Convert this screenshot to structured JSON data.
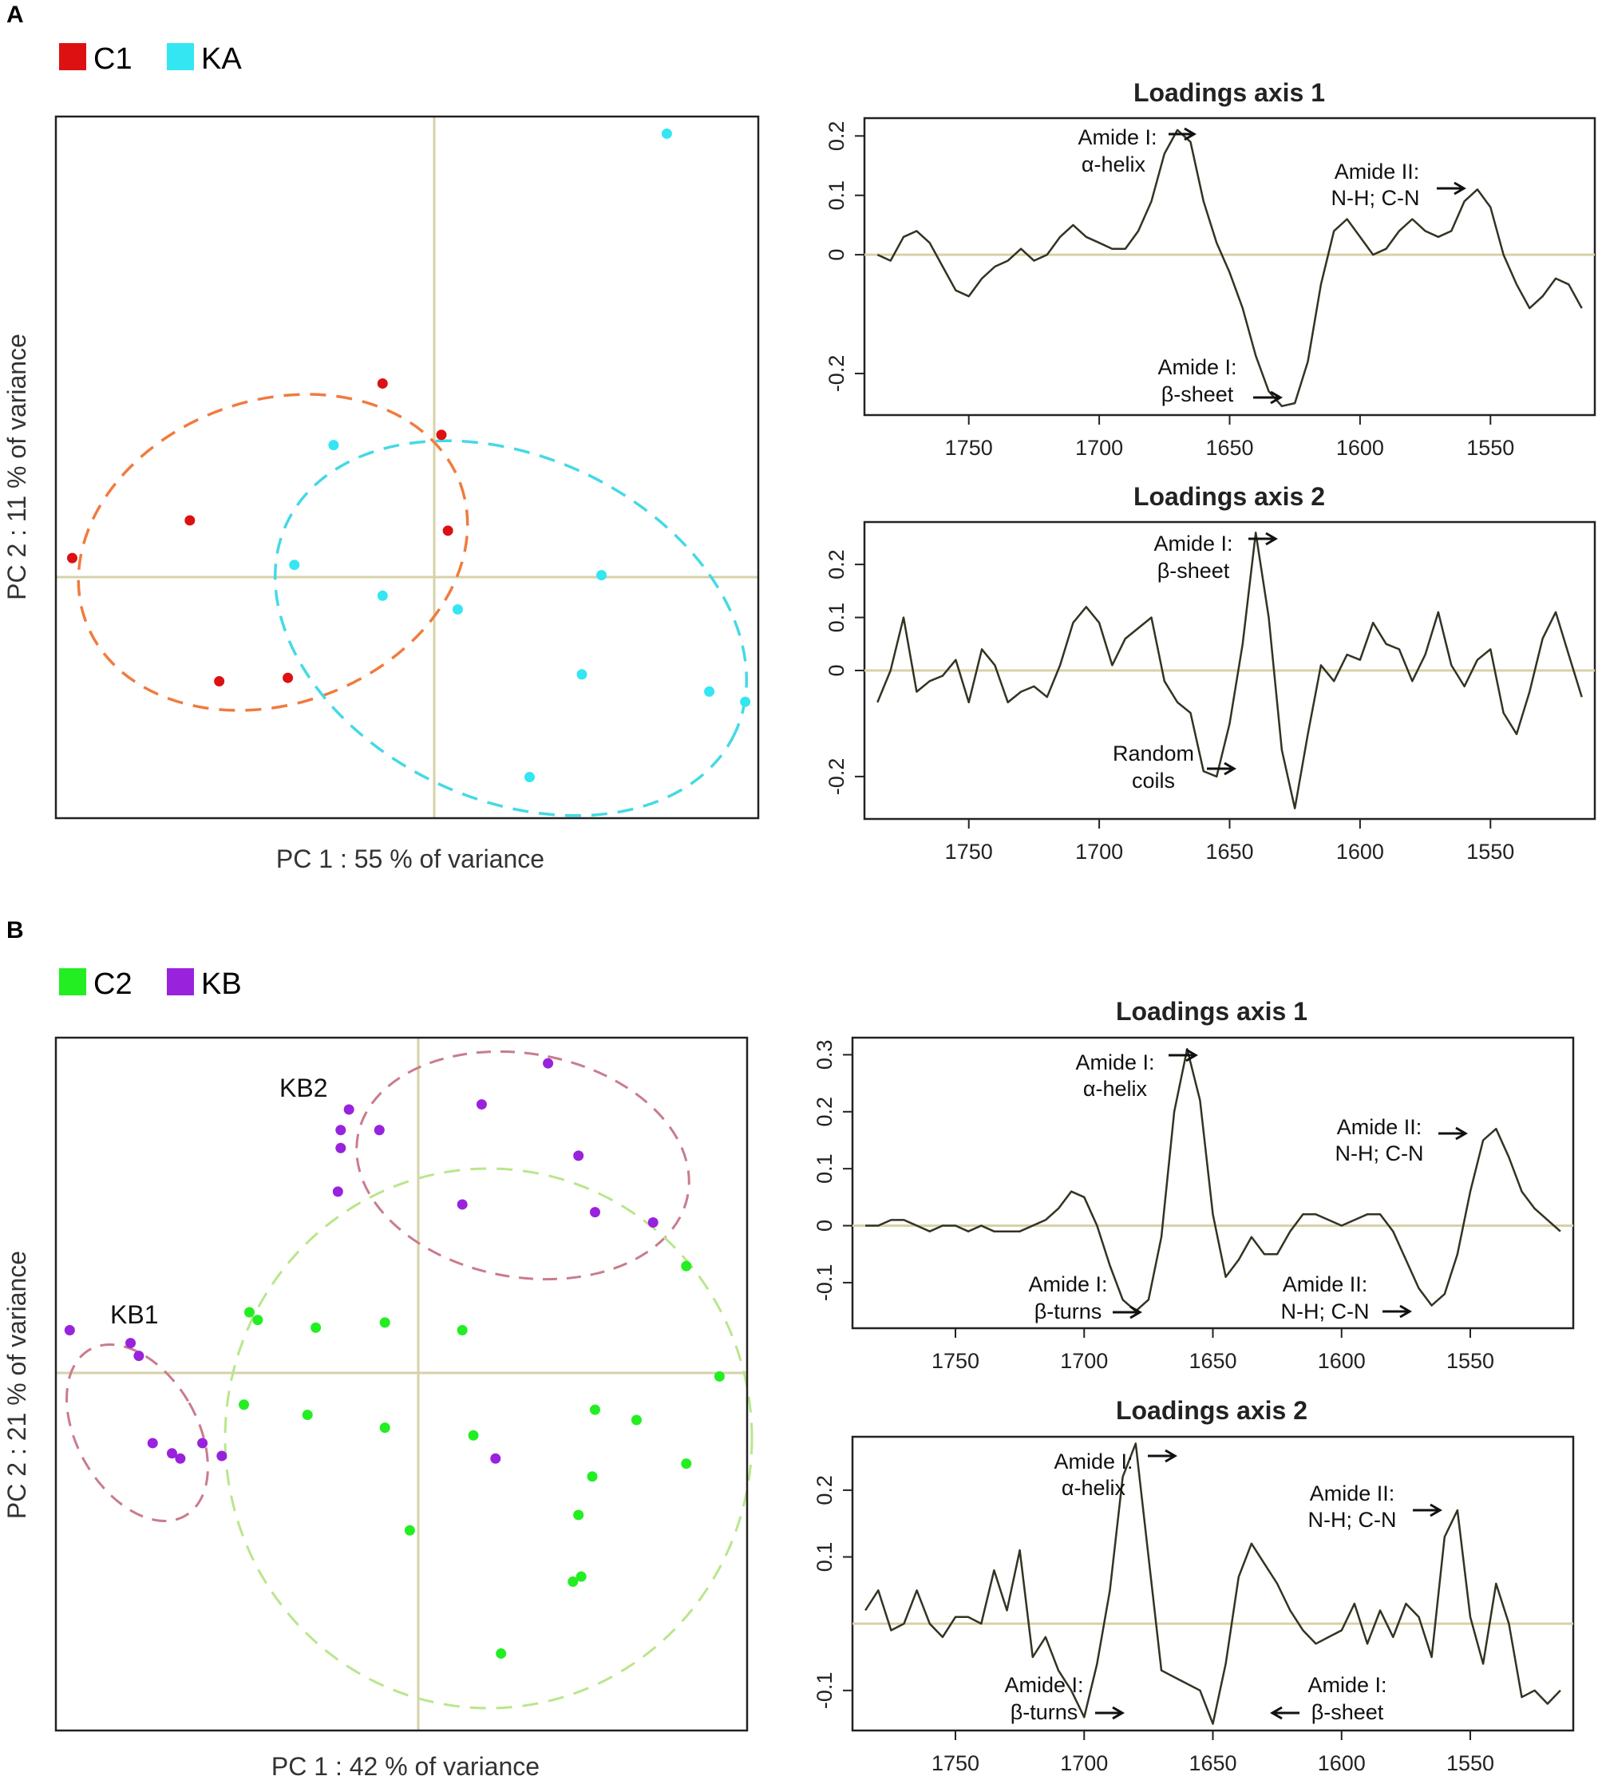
{
  "panels": [
    {
      "letter": "A",
      "legend": [
        {
          "label": "C1",
          "color": "#dd1111"
        },
        {
          "label": "KA",
          "color": "#33e6f2"
        }
      ],
      "score_plot": {
        "xlabel": "PC 1 : 55 % of variance",
        "ylabel": "PC 2 : 11 % of variance"
      },
      "loadings_titles": [
        "Loadings axis 1",
        "Loadings axis 2"
      ]
    },
    {
      "letter": "B",
      "legend": [
        {
          "label": "C2",
          "color": "#22ee22"
        },
        {
          "label": "KB",
          "color": "#9922dd"
        }
      ],
      "score_plot": {
        "xlabel": "PC 1 : 42 % of variance",
        "ylabel": "PC 2 : 21 % of variance",
        "labels": [
          "KB1",
          "KB2"
        ]
      },
      "loadings_titles": [
        "Loadings axis 1",
        "Loadings axis 2"
      ]
    }
  ],
  "colors": {
    "axis": "#222222",
    "zero_line": "#d6d2a8",
    "curve": "#333322",
    "ellipse_C1": "#f07b3f",
    "ellipse_KA": "#44d9e6",
    "ellipse_KB": "#c97c8c",
    "ellipse_C2": "#b9e68c"
  },
  "chart_data": [
    {
      "type": "scatter",
      "title": "",
      "xlabel": "PC 1 : 55 % of variance",
      "ylabel": "PC 2 : 11 % of variance",
      "xlim": [
        -1.15,
        1.0
      ],
      "ylim": [
        -0.75,
        1.3
      ],
      "series": [
        {
          "name": "C1",
          "color": "#dd1111",
          "points": [
            [
              -1.1,
              0.01
            ],
            [
              -0.74,
              0.12
            ],
            [
              -0.15,
              0.52
            ],
            [
              0.03,
              0.37
            ],
            [
              0.05,
              0.09
            ],
            [
              -0.65,
              -0.35
            ],
            [
              -0.44,
              -0.34
            ]
          ]
        },
        {
          "name": "KA",
          "color": "#33e6f2",
          "points": [
            [
              0.72,
              1.25
            ],
            [
              -0.3,
              0.34
            ],
            [
              -0.42,
              -0.01
            ],
            [
              -0.15,
              -0.1
            ],
            [
              0.08,
              -0.14
            ],
            [
              0.52,
              -0.04
            ],
            [
              0.46,
              -0.33
            ],
            [
              0.85,
              -0.38
            ],
            [
              0.96,
              -0.41
            ],
            [
              0.3,
              -0.63
            ]
          ]
        }
      ]
    },
    {
      "type": "line",
      "title": "Loadings axis 1",
      "xlim": [
        1790,
        1510
      ],
      "ylim": [
        -0.27,
        0.23
      ],
      "xticks": [
        1750,
        1700,
        1650,
        1600,
        1550
      ],
      "yticks": [
        0.2,
        0.1,
        0,
        -0.2
      ],
      "ytick_labels": [
        "0.2",
        "0.1",
        "0",
        "-0.2"
      ],
      "x": [
        1785,
        1780,
        1775,
        1770,
        1765,
        1760,
        1755,
        1750,
        1745,
        1740,
        1735,
        1730,
        1725,
        1720,
        1715,
        1710,
        1705,
        1700,
        1695,
        1690,
        1685,
        1680,
        1675,
        1670,
        1665,
        1660,
        1655,
        1650,
        1645,
        1640,
        1635,
        1630,
        1625,
        1620,
        1615,
        1610,
        1605,
        1600,
        1595,
        1590,
        1585,
        1580,
        1575,
        1570,
        1565,
        1560,
        1555,
        1550,
        1545,
        1540,
        1535,
        1530,
        1525,
        1520,
        1515
      ],
      "y": [
        0,
        -0.01,
        0.03,
        0.04,
        0.02,
        -0.02,
        -0.06,
        -0.07,
        -0.04,
        -0.02,
        -0.01,
        0.01,
        -0.01,
        0,
        0.03,
        0.05,
        0.03,
        0.02,
        0.01,
        0.01,
        0.04,
        0.09,
        0.17,
        0.21,
        0.19,
        0.09,
        0.02,
        -0.03,
        -0.09,
        -0.17,
        -0.23,
        -0.255,
        -0.25,
        -0.18,
        -0.05,
        0.04,
        0.06,
        0.03,
        0,
        0.01,
        0.04,
        0.06,
        0.04,
        0.03,
        0.04,
        0.09,
        0.11,
        0.08,
        0,
        -0.05,
        -0.09,
        -0.07,
        -0.04,
        -0.05,
        -0.09
      ],
      "annotations": [
        "Amide I:",
        "α-helix",
        "Amide II:",
        "N-H; C-N",
        "Amide I:",
        "β-sheet"
      ]
    },
    {
      "type": "line",
      "title": "Loadings axis 2",
      "xlim": [
        1790,
        1510
      ],
      "ylim": [
        -0.28,
        0.28
      ],
      "xticks": [
        1750,
        1700,
        1650,
        1600,
        1550
      ],
      "yticks": [
        0.2,
        0.1,
        0,
        -0.2
      ],
      "ytick_labels": [
        "0.2",
        "0.1",
        "0",
        "-0.2"
      ],
      "x": [
        1785,
        1780,
        1775,
        1770,
        1765,
        1760,
        1755,
        1750,
        1745,
        1740,
        1735,
        1730,
        1725,
        1720,
        1715,
        1710,
        1705,
        1700,
        1695,
        1690,
        1685,
        1680,
        1675,
        1670,
        1665,
        1660,
        1655,
        1650,
        1645,
        1640,
        1635,
        1630,
        1625,
        1620,
        1615,
        1610,
        1605,
        1600,
        1595,
        1590,
        1585,
        1580,
        1575,
        1570,
        1565,
        1560,
        1555,
        1550,
        1545,
        1540,
        1535,
        1530,
        1525,
        1520,
        1515
      ],
      "y": [
        -0.06,
        0,
        0.1,
        -0.04,
        -0.02,
        -0.01,
        0.02,
        -0.06,
        0.04,
        0.01,
        -0.06,
        -0.04,
        -0.03,
        -0.05,
        0.01,
        0.09,
        0.12,
        0.09,
        0.01,
        0.06,
        0.08,
        0.1,
        -0.02,
        -0.06,
        -0.08,
        -0.19,
        -0.2,
        -0.1,
        0.05,
        0.26,
        0.1,
        -0.15,
        -0.26,
        -0.12,
        0.01,
        -0.02,
        0.03,
        0.02,
        0.09,
        0.05,
        0.04,
        -0.02,
        0.03,
        0.11,
        0.01,
        -0.03,
        0.02,
        0.04,
        -0.08,
        -0.12,
        -0.04,
        0.06,
        0.11,
        0.03,
        -0.05
      ],
      "annotations": [
        "Amide I:",
        "β-sheet",
        "Random",
        "coils"
      ]
    },
    {
      "type": "scatter",
      "title": "",
      "xlabel": "PC 1 : 42 % of variance",
      "ylabel": "PC 2 : 21 % of variance",
      "xlim": [
        -1.3,
        1.2
      ],
      "ylim": [
        -1.5,
        1.2
      ],
      "series": [
        {
          "name": "KB",
          "color": "#9922dd",
          "points": [
            [
              -1.25,
              0.06
            ],
            [
              -1.03,
              0.01
            ],
            [
              -1.0,
              -0.04
            ],
            [
              -0.95,
              -0.38
            ],
            [
              -0.88,
              -0.42
            ],
            [
              -0.85,
              -0.44
            ],
            [
              -0.77,
              -0.38
            ],
            [
              -0.7,
              -0.43
            ],
            [
              -0.27,
              0.84
            ],
            [
              -0.24,
              0.92
            ],
            [
              -0.27,
              0.77
            ],
            [
              -0.28,
              0.6
            ],
            [
              -0.13,
              0.84
            ],
            [
              0.17,
              0.55
            ],
            [
              0.24,
              0.94
            ],
            [
              0.48,
              1.1
            ],
            [
              0.59,
              0.74
            ],
            [
              0.65,
              0.52
            ],
            [
              0.86,
              0.48
            ],
            [
              0.29,
              -0.44
            ]
          ]
        },
        {
          "name": "C2",
          "color": "#22ee22",
          "points": [
            [
              -0.6,
              0.13
            ],
            [
              -0.57,
              0.1
            ],
            [
              -0.36,
              0.07
            ],
            [
              -0.11,
              0.09
            ],
            [
              0.17,
              0.06
            ],
            [
              0.98,
              0.31
            ],
            [
              1.1,
              -0.12
            ],
            [
              -0.62,
              -0.23
            ],
            [
              -0.39,
              -0.27
            ],
            [
              -0.11,
              -0.32
            ],
            [
              0.21,
              -0.35
            ],
            [
              0.65,
              -0.25
            ],
            [
              0.8,
              -0.29
            ],
            [
              0.98,
              -0.46
            ],
            [
              0.64,
              -0.51
            ],
            [
              0.59,
              -0.66
            ],
            [
              -0.02,
              -0.72
            ],
            [
              0.57,
              -0.92
            ],
            [
              0.6,
              -0.9
            ],
            [
              0.31,
              -1.2
            ]
          ]
        }
      ],
      "annotations": [
        "KB1",
        "KB2"
      ]
    },
    {
      "type": "line",
      "title": "Loadings axis 1",
      "xlim": [
        1790,
        1510
      ],
      "ylim": [
        -0.18,
        0.33
      ],
      "xticks": [
        1750,
        1700,
        1650,
        1600,
        1550
      ],
      "yticks": [
        0.3,
        0.2,
        0.1,
        0,
        -0.1
      ],
      "ytick_labels": [
        "0.3",
        "0.2",
        "0.1",
        "0",
        "-0.1"
      ],
      "x": [
        1785,
        1780,
        1775,
        1770,
        1765,
        1760,
        1755,
        1750,
        1745,
        1740,
        1735,
        1730,
        1725,
        1720,
        1715,
        1710,
        1705,
        1700,
        1695,
        1690,
        1685,
        1680,
        1675,
        1670,
        1665,
        1660,
        1655,
        1650,
        1645,
        1640,
        1635,
        1630,
        1625,
        1620,
        1615,
        1610,
        1605,
        1600,
        1595,
        1590,
        1585,
        1580,
        1575,
        1570,
        1565,
        1560,
        1555,
        1550,
        1545,
        1540,
        1535,
        1530,
        1525,
        1520,
        1515
      ],
      "y": [
        0,
        0,
        0.01,
        0.01,
        0,
        -0.01,
        0,
        0,
        -0.01,
        0,
        -0.01,
        -0.01,
        -0.01,
        0,
        0.01,
        0.03,
        0.06,
        0.05,
        0,
        -0.07,
        -0.13,
        -0.15,
        -0.13,
        -0.02,
        0.2,
        0.31,
        0.22,
        0.02,
        -0.09,
        -0.06,
        -0.02,
        -0.05,
        -0.05,
        -0.01,
        0.02,
        0.02,
        0.01,
        0,
        0.01,
        0.02,
        0.02,
        -0.01,
        -0.06,
        -0.11,
        -0.14,
        -0.12,
        -0.05,
        0.06,
        0.15,
        0.17,
        0.12,
        0.06,
        0.03,
        0.01,
        -0.01
      ],
      "annotations": [
        "Amide I:",
        "α-helix",
        "Amide II:",
        "N-H; C-N",
        "Amide I:",
        "β-turns",
        "Amide II:",
        "N-H; C-N"
      ]
    },
    {
      "type": "line",
      "title": "Loadings axis 2",
      "xlim": [
        1790,
        1510
      ],
      "ylim": [
        -0.16,
        0.28
      ],
      "xticks": [
        1750,
        1700,
        1650,
        1600,
        1550
      ],
      "yticks": [
        0.2,
        0.1,
        -0.1
      ],
      "ytick_labels": [
        "0.2",
        "0.1",
        "-0.1"
      ],
      "x": [
        1785,
        1780,
        1775,
        1770,
        1765,
        1760,
        1755,
        1750,
        1745,
        1740,
        1735,
        1730,
        1725,
        1720,
        1715,
        1710,
        1705,
        1700,
        1695,
        1690,
        1685,
        1680,
        1675,
        1670,
        1665,
        1660,
        1655,
        1650,
        1645,
        1640,
        1635,
        1630,
        1625,
        1620,
        1615,
        1610,
        1605,
        1600,
        1595,
        1590,
        1585,
        1580,
        1575,
        1570,
        1565,
        1560,
        1555,
        1550,
        1545,
        1540,
        1535,
        1530,
        1525,
        1520,
        1515
      ],
      "y": [
        0.02,
        0.05,
        -0.01,
        0,
        0.05,
        0,
        -0.02,
        0.01,
        0.01,
        0,
        0.08,
        0.02,
        0.11,
        -0.05,
        -0.02,
        -0.07,
        -0.1,
        -0.14,
        -0.06,
        0.05,
        0.22,
        0.27,
        0.1,
        -0.07,
        -0.08,
        -0.09,
        -0.1,
        -0.15,
        -0.06,
        0.07,
        0.12,
        0.09,
        0.06,
        0.02,
        -0.01,
        -0.03,
        -0.02,
        -0.01,
        0.03,
        -0.03,
        0.02,
        -0.02,
        0.03,
        0.01,
        -0.05,
        0.13,
        0.17,
        0.01,
        -0.06,
        0.06,
        0,
        -0.11,
        -0.1,
        -0.12,
        -0.1
      ],
      "annotations": [
        "Amide I:",
        "α-helix",
        "Amide II:",
        "N-H; C-N",
        "Amide I:",
        "β-turns",
        "Amide I:",
        "β-sheet"
      ]
    }
  ]
}
